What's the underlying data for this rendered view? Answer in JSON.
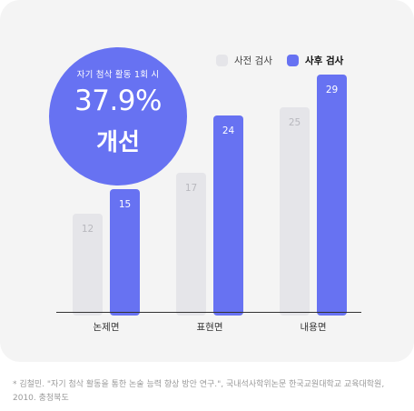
{
  "badge": {
    "caption": "자기 첨삭 활동 1회 시",
    "percent": "37.9%",
    "improvement": "개선"
  },
  "legend": {
    "pre_label": "사전 검사",
    "post_label": "사후 검사"
  },
  "colors": {
    "pre": "#e5e5e9",
    "post": "#6772f2",
    "pre_text": "#b8b8be",
    "post_text": "#ffffff",
    "axis": "#333333",
    "card": "#f4f4f4"
  },
  "chart_data": {
    "type": "bar",
    "categories": [
      "논제면",
      "표현면",
      "내용면"
    ],
    "series": [
      {
        "name": "사전 검사",
        "values": [
          12,
          17,
          25
        ]
      },
      {
        "name": "사후 검사",
        "values": [
          15,
          24,
          29
        ]
      }
    ],
    "title": "",
    "xlabel": "",
    "ylabel": "",
    "legend_position": "top-right",
    "grid": false
  },
  "footnote": "* 김철민. \"자기 첨삭 활동을 통한 논술 능력 향상 방안 연구.\", 국내석사학위논문 한국교원대학교 교육대학원, 2010. 충청북도"
}
